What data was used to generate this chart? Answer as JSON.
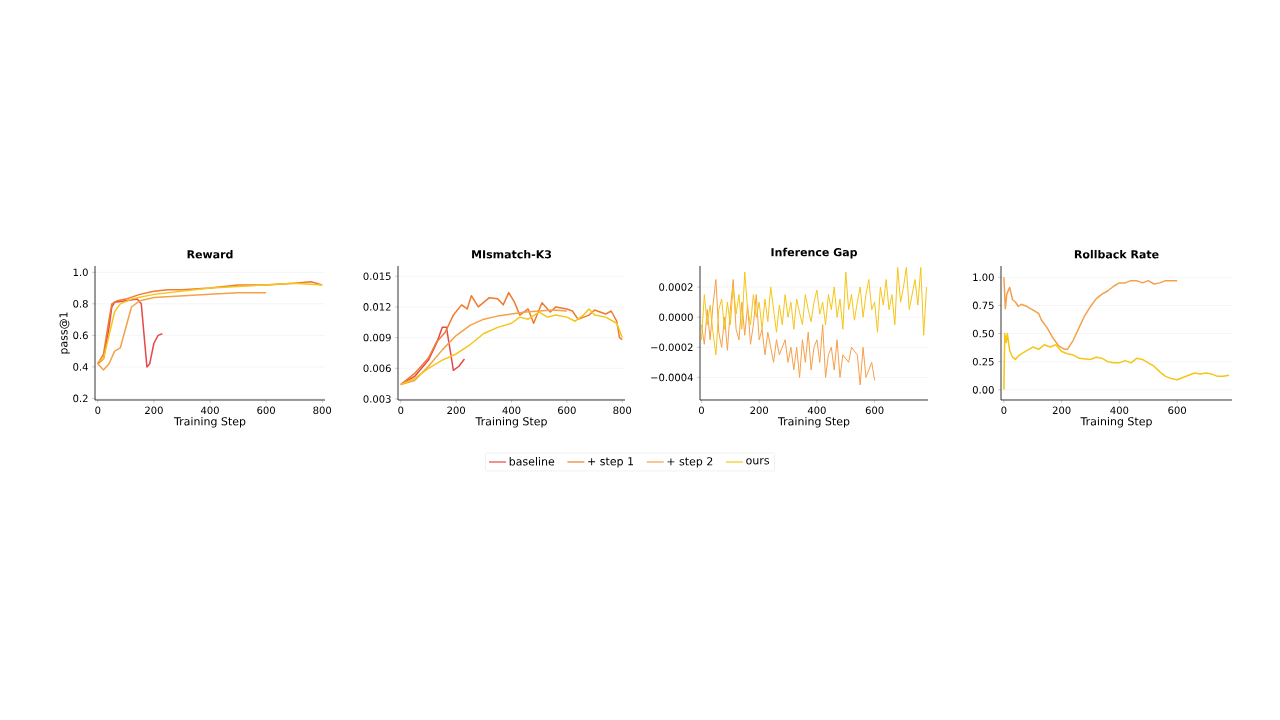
{
  "chart_data": [
    {
      "type": "line",
      "title": "Reward",
      "xlabel": "Training Step",
      "ylabel": "pass@1",
      "xlim": [
        -10,
        810
      ],
      "ylim": [
        0.19,
        1.04
      ],
      "xticks": [
        0,
        200,
        400,
        600,
        800
      ],
      "yticks": [
        {
          "value": 0.2,
          "label": "0.2"
        },
        {
          "value": 0.4,
          "label": "0.4"
        },
        {
          "value": 0.6,
          "label": "0.6"
        },
        {
          "value": 0.8,
          "label": "0.8"
        },
        {
          "value": 1.0,
          "label": "1.0"
        }
      ],
      "grid": "y",
      "marker": "none",
      "series": [
        {
          "color": "#e8474a",
          "x": [
            0,
            20,
            40,
            50,
            60,
            100,
            140,
            155,
            165,
            175,
            185,
            200,
            215,
            230
          ],
          "values": [
            0.42,
            0.45,
            0.65,
            0.78,
            0.81,
            0.82,
            0.83,
            0.8,
            0.6,
            0.4,
            0.42,
            0.55,
            0.6,
            0.61
          ]
        },
        {
          "color": "#f07a30",
          "x": [
            0,
            20,
            40,
            50,
            70,
            100,
            150,
            200,
            250,
            300,
            400,
            500,
            600,
            700,
            760,
            800
          ],
          "values": [
            0.42,
            0.48,
            0.7,
            0.8,
            0.82,
            0.83,
            0.86,
            0.88,
            0.89,
            0.89,
            0.9,
            0.92,
            0.92,
            0.93,
            0.94,
            0.92
          ]
        },
        {
          "color": "#f5a04a",
          "x": [
            0,
            20,
            40,
            60,
            80,
            100,
            120,
            150,
            200,
            300,
            400,
            500,
            600
          ],
          "values": [
            0.42,
            0.38,
            0.42,
            0.5,
            0.52,
            0.65,
            0.78,
            0.82,
            0.84,
            0.85,
            0.86,
            0.87,
            0.87
          ]
        },
        {
          "color": "#f5c518",
          "x": [
            0,
            20,
            40,
            60,
            80,
            120,
            200,
            300,
            400,
            500,
            600,
            700,
            800
          ],
          "values": [
            0.43,
            0.45,
            0.6,
            0.75,
            0.8,
            0.83,
            0.86,
            0.88,
            0.9,
            0.91,
            0.92,
            0.93,
            0.92
          ]
        }
      ]
    },
    {
      "type": "line",
      "title": "MIsmatch-K3",
      "xlabel": "Training Step",
      "xlim": [
        -10,
        810
      ],
      "ylim": [
        0.0029,
        0.016
      ],
      "xticks": [
        0,
        200,
        400,
        600,
        800
      ],
      "yticks": [
        0.003,
        0.006,
        0.009,
        0.012,
        0.015
      ],
      "grid": "y",
      "marker": "none",
      "legend": "bottom",
      "series": [
        {
          "name": "baseline",
          "color": "#e8474a",
          "x": [
            0,
            50,
            100,
            130,
            150,
            165,
            180,
            190,
            210,
            230
          ],
          "values": [
            0.0044,
            0.0052,
            0.0068,
            0.0085,
            0.01,
            0.01,
            0.0075,
            0.0058,
            0.0062,
            0.0069
          ]
        },
        {
          "name": "+ step 1",
          "color": "#f07a30",
          "x": [
            0,
            50,
            100,
            130,
            160,
            190,
            220,
            240,
            255,
            280,
            320,
            350,
            370,
            390,
            410,
            430,
            460,
            480,
            510,
            540,
            560,
            600,
            620,
            640,
            680,
            700,
            740,
            760,
            780,
            790,
            800
          ],
          "values": [
            0.0044,
            0.0055,
            0.007,
            0.0086,
            0.0095,
            0.0112,
            0.0122,
            0.0118,
            0.0131,
            0.012,
            0.0129,
            0.0128,
            0.0122,
            0.0134,
            0.0125,
            0.0112,
            0.0118,
            0.0104,
            0.0124,
            0.0115,
            0.012,
            0.0118,
            0.0116,
            0.0108,
            0.0112,
            0.0117,
            0.0113,
            0.0116,
            0.0106,
            0.009,
            0.0088
          ]
        },
        {
          "name": "+ step 2",
          "color": "#f5a04a",
          "x": [
            0,
            50,
            100,
            150,
            200,
            250,
            300,
            350,
            400,
            450,
            500,
            550,
            600
          ],
          "values": [
            0.0044,
            0.0048,
            0.0062,
            0.0078,
            0.0092,
            0.0102,
            0.0108,
            0.0111,
            0.0113,
            0.0115,
            0.0116,
            0.0117,
            0.0116
          ]
        },
        {
          "name": "ours",
          "color": "#f5c518",
          "x": [
            0,
            50,
            100,
            150,
            200,
            250,
            300,
            350,
            400,
            430,
            460,
            500,
            530,
            560,
            600,
            630,
            660,
            680,
            700,
            740,
            780,
            800
          ],
          "values": [
            0.0044,
            0.005,
            0.006,
            0.0068,
            0.0074,
            0.0083,
            0.0094,
            0.01,
            0.0104,
            0.011,
            0.0108,
            0.0115,
            0.011,
            0.0112,
            0.011,
            0.0106,
            0.0112,
            0.0118,
            0.0112,
            0.011,
            0.0104,
            0.009
          ]
        }
      ]
    },
    {
      "type": "line",
      "title": "Inference Gap",
      "xlabel": "Training Step",
      "xlim": [
        -5,
        785
      ],
      "ylim": [
        -0.00055,
        0.00034
      ],
      "xticks": [
        0,
        200,
        400,
        600
      ],
      "yticks": [
        {
          "value": -0.0004,
          "label": "−0.0004"
        },
        {
          "value": -0.0002,
          "label": "−0.0002"
        },
        {
          "value": 0,
          "label": "0.0000"
        },
        {
          "value": 0.0002,
          "label": "0.0002"
        }
      ],
      "grid": "y",
      "marker": "none",
      "series": [
        {
          "color": "#f5a04a",
          "x": [
            0,
            10,
            20,
            30,
            40,
            50,
            60,
            70,
            80,
            90,
            100,
            110,
            120,
            130,
            140,
            150,
            160,
            170,
            180,
            190,
            200,
            210,
            220,
            230,
            240,
            250,
            260,
            270,
            280,
            290,
            300,
            310,
            320,
            330,
            340,
            350,
            360,
            370,
            380,
            390,
            400,
            410,
            420,
            430,
            440,
            450,
            460,
            470,
            480,
            490,
            500,
            510,
            520,
            530,
            540,
            550,
            560,
            570,
            580,
            590,
            600
          ],
          "values": [
            -5e-05,
            -0.00018,
            5e-05,
            -0.00015,
            8e-05,
            0.00025,
            -0.0001,
            -0.0002,
            0,
            -0.00022,
            5e-05,
            0.00025,
            -8e-05,
            -0.00015,
            0.0001,
            -0.00012,
            8e-05,
            -0.00018,
            -5e-05,
            0.00015,
            -0.00015,
            -8e-05,
            -0.00025,
            -0.0001,
            -0.0002,
            -0.0003,
            -0.00015,
            -0.00025,
            null,
            -0.00015,
            -0.0003,
            -0.0002,
            -0.00035,
            -0.0002,
            -0.0004,
            -0.00015,
            -0.0003,
            -0.0001,
            -0.00035,
            -0.0002,
            -0.00015,
            -0.0003,
            -5e-05,
            -0.0004,
            -0.00025,
            -0.0002,
            -0.00035,
            -0.00015,
            -0.0004,
            -0.00025,
            null,
            -0.0003,
            -0.0002,
            null,
            -0.00025,
            -0.00045,
            -0.0002,
            -0.0004,
            null,
            -0.0003,
            -0.00042
          ]
        },
        {
          "color": "#f5c518",
          "x": [
            0,
            10,
            20,
            30,
            40,
            50,
            60,
            70,
            80,
            90,
            100,
            110,
            120,
            130,
            140,
            150,
            160,
            170,
            180,
            190,
            200,
            210,
            220,
            230,
            240,
            250,
            260,
            270,
            280,
            290,
            300,
            310,
            320,
            330,
            340,
            350,
            360,
            370,
            380,
            390,
            400,
            410,
            420,
            430,
            440,
            450,
            460,
            470,
            480,
            490,
            500,
            510,
            520,
            530,
            540,
            550,
            560,
            570,
            580,
            590,
            600,
            610,
            620,
            630,
            640,
            650,
            660,
            670,
            680,
            690,
            700,
            710,
            720,
            730,
            740,
            750,
            760,
            770,
            780
          ],
          "values": [
            -0.00015,
            0.00015,
            -5e-05,
            8e-05,
            -0.0001,
            -0.00025,
            5e-05,
            0.00012,
            -8e-05,
            0.0001,
            -5e-05,
            0.0002,
            2e-05,
            0.00015,
            -8e-05,
            0.0003,
            5e-05,
            -5e-05,
            0.00015,
            0,
            0.0001,
            -8e-05,
            0.00012,
            -3e-05,
            0.0002,
            5e-05,
            -0.0001,
            8e-05,
            -5e-05,
            0.00015,
            0,
            0.0001,
            -8e-05,
            0.00012,
            3e-05,
            -5e-05,
            0.00015,
            5e-05,
            -3e-05,
            0.0001,
            0.00018,
            2e-05,
            0.0001,
            -5e-05,
            0.00015,
            5e-05,
            0.0002,
            0,
            0.00012,
            -8e-05,
            0.0003,
            5e-05,
            0.00015,
            -2e-05,
            0.0001,
            0.0002,
            0,
            0.00015,
            0.00025,
            5e-05,
            0.0001,
            -0.0001,
            0.0002,
            8e-05,
            0.00025,
            5e-05,
            0.00015,
            -5e-05,
            0.00033,
            0.0001,
            0.0002,
            0.00033,
            5e-05,
            0.00015,
            0.00025,
            8e-05,
            0.00033,
            -0.00012,
            0.0002
          ]
        }
      ]
    },
    {
      "type": "line",
      "title": "Rollback Rate",
      "xlabel": "Training Step",
      "xlim": [
        -10,
        790
      ],
      "ylim": [
        -0.09,
        1.1
      ],
      "xticks": [
        0,
        200,
        400,
        600
      ],
      "yticks": [
        {
          "value": 0,
          "label": "0.00"
        },
        {
          "value": 0.25,
          "label": "0.25"
        },
        {
          "value": 0.5,
          "label": "0.50"
        },
        {
          "value": 0.75,
          "label": "0.75"
        },
        {
          "value": 1,
          "label": "1.00"
        }
      ],
      "grid": "y",
      "marker": "none",
      "series": [
        {
          "color": "#f5a04a",
          "x": [
            0,
            5,
            10,
            20,
            30,
            40,
            50,
            60,
            80,
            100,
            120,
            130,
            150,
            170,
            190,
            210,
            220,
            240,
            260,
            280,
            300,
            320,
            340,
            360,
            380,
            400,
            420,
            440,
            460,
            480,
            500,
            520,
            540,
            560,
            580,
            600
          ],
          "values": [
            1.0,
            0.72,
            0.85,
            0.91,
            0.8,
            0.78,
            0.74,
            0.76,
            0.74,
            0.71,
            0.68,
            0.62,
            0.55,
            0.46,
            0.39,
            0.36,
            0.36,
            0.44,
            0.55,
            0.66,
            0.74,
            0.81,
            0.85,
            0.88,
            0.92,
            0.95,
            0.95,
            0.97,
            0.97,
            0.95,
            0.97,
            0.94,
            0.95,
            0.97,
            0.97,
            0.97
          ]
        },
        {
          "color": "#f5c518",
          "x": [
            0,
            3,
            8,
            12,
            20,
            30,
            40,
            50,
            60,
            80,
            100,
            120,
            140,
            160,
            180,
            200,
            220,
            240,
            260,
            300,
            320,
            340,
            360,
            380,
            400,
            420,
            440,
            460,
            480,
            500,
            520,
            540,
            560,
            580,
            600,
            620,
            640,
            660,
            680,
            700,
            720,
            740,
            760,
            780
          ],
          "values": [
            0.0,
            0.5,
            0.42,
            0.5,
            0.35,
            0.29,
            0.27,
            0.3,
            0.32,
            0.35,
            0.38,
            0.36,
            0.4,
            0.38,
            0.4,
            0.34,
            0.32,
            0.31,
            0.28,
            0.27,
            0.29,
            0.28,
            0.25,
            0.24,
            0.24,
            0.26,
            0.24,
            0.28,
            0.27,
            0.24,
            0.21,
            0.16,
            0.12,
            0.1,
            0.09,
            0.11,
            0.13,
            0.15,
            0.14,
            0.15,
            0.14,
            0.12,
            0.12,
            0.13
          ]
        }
      ]
    }
  ]
}
